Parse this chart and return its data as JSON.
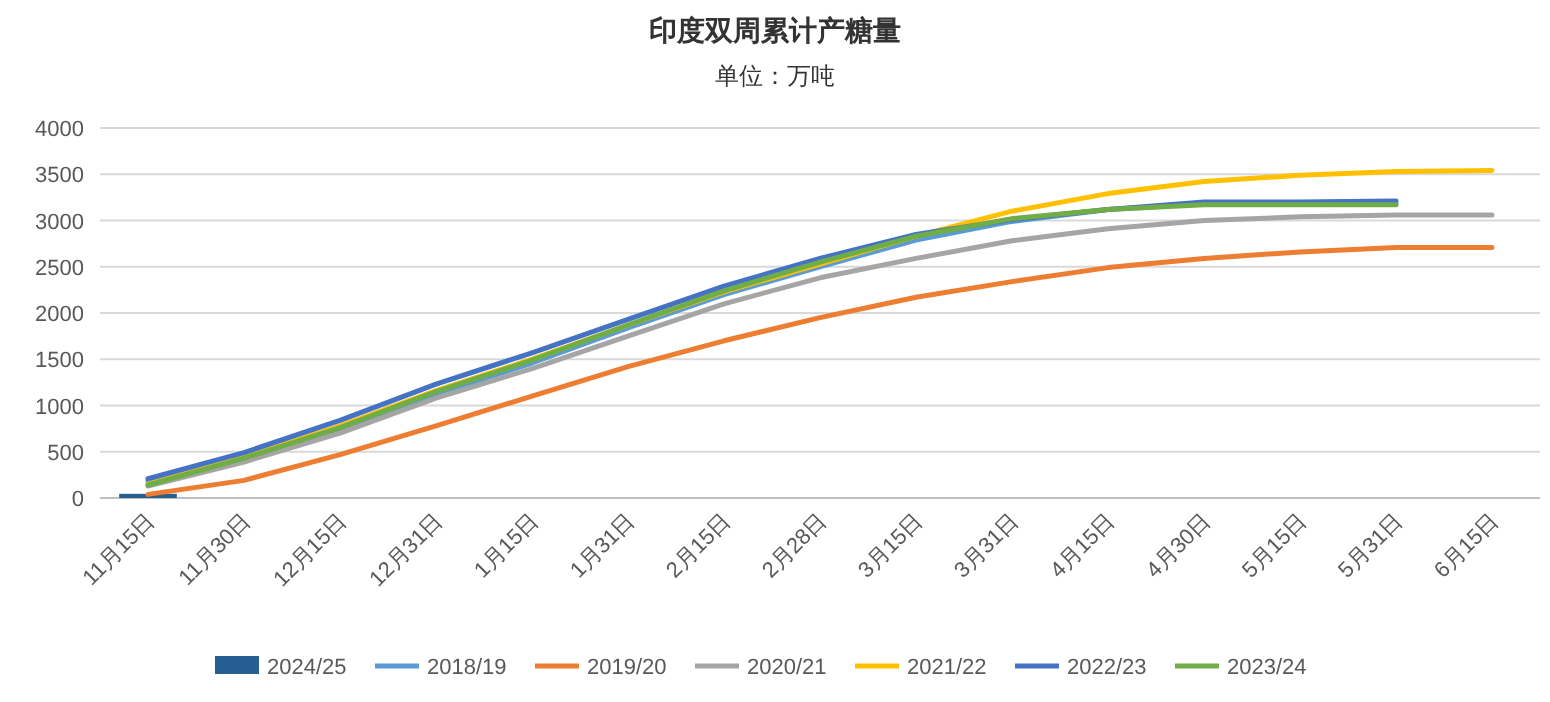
{
  "chart_data": {
    "type": "line",
    "title": "印度双周累计产糖量",
    "subtitle": "单位：万吨",
    "categories": [
      "11月15日",
      "11月30日",
      "12月15日",
      "12月31日",
      "1月15日",
      "1月31日",
      "2月15日",
      "2月28日",
      "3月15日",
      "3月31日",
      "4月15日",
      "4月30日",
      "5月15日",
      "5月31日",
      "6月15日"
    ],
    "series": [
      {
        "name": "2024/25",
        "type": "bar",
        "color": "#255e91",
        "values": [
          45,
          null,
          null,
          null,
          null,
          null,
          null,
          null,
          null,
          null,
          null,
          null,
          null,
          null,
          null
        ]
      },
      {
        "name": "2018/19",
        "color": "#5b9bd5",
        "values": [
          180,
          420,
          730,
          1120,
          1460,
          1840,
          2200,
          2500,
          2790,
          2990,
          3120,
          3180,
          3190,
          3190,
          null
        ]
      },
      {
        "name": "2019/20",
        "color": "#ed7d31",
        "values": [
          40,
          190,
          470,
          780,
          1100,
          1420,
          1700,
          1950,
          2170,
          2340,
          2490,
          2590,
          2660,
          2710,
          2710
        ]
      },
      {
        "name": "2020/21",
        "color": "#a5a5a5",
        "values": [
          130,
          390,
          700,
          1080,
          1400,
          1750,
          2100,
          2380,
          2590,
          2780,
          2910,
          3000,
          3040,
          3060,
          3060
        ]
      },
      {
        "name": "2021/22",
        "color": "#ffc000",
        "values": [
          150,
          440,
          780,
          1160,
          1500,
          1870,
          2230,
          2530,
          2830,
          3100,
          3290,
          3420,
          3490,
          3530,
          3540
        ]
      },
      {
        "name": "2022/23",
        "color": "#4472c4",
        "values": [
          210,
          490,
          840,
          1230,
          1570,
          1930,
          2290,
          2590,
          2850,
          3010,
          3120,
          3200,
          3200,
          3210,
          null
        ]
      },
      {
        "name": "2023/24",
        "color": "#70ad47",
        "values": [
          140,
          430,
          760,
          1150,
          1490,
          1870,
          2240,
          2550,
          2830,
          3020,
          3120,
          3170,
          3170,
          3170,
          null
        ]
      }
    ],
    "ylim": [
      0,
      4000
    ],
    "yticks": [
      0,
      500,
      1000,
      1500,
      2000,
      2500,
      3000,
      3500,
      4000
    ],
    "grid": "y",
    "legend": "bottom"
  }
}
